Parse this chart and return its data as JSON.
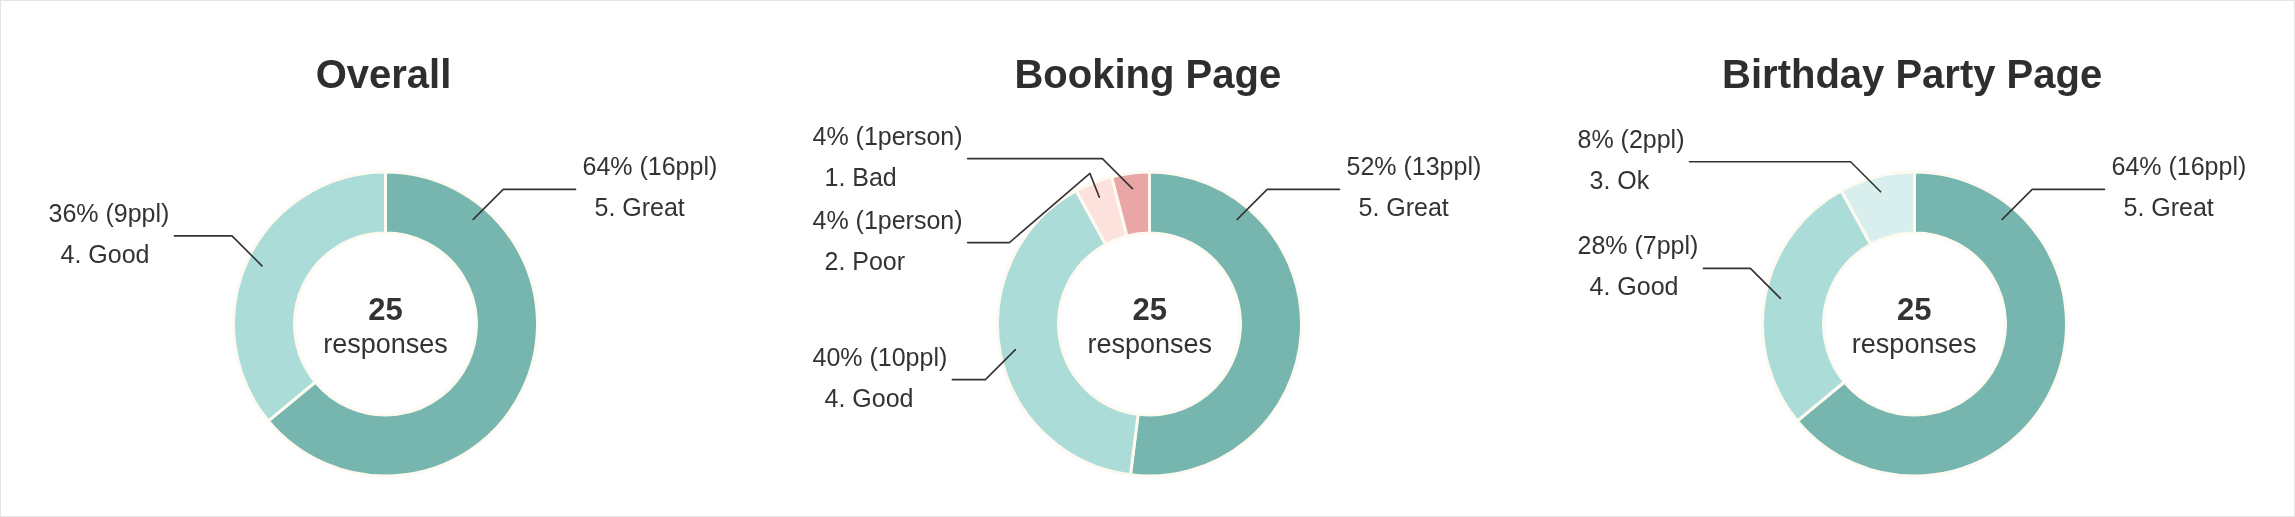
{
  "chart_data": [
    {
      "type": "donut",
      "title": "Overall",
      "categories": [
        "5. Great",
        "4. Good"
      ],
      "values": [
        64,
        36
      ],
      "colors": [
        "#77b5af",
        "#acdcd8"
      ],
      "value_labels": [
        "64% (16ppl)",
        "36% (9ppl)"
      ],
      "annotations": [
        "25",
        "responses"
      ]
    },
    {
      "type": "donut",
      "title": "Booking Page",
      "categories": [
        "5. Great",
        "4. Good",
        "2. Poor",
        "1. Bad"
      ],
      "values": [
        52,
        40,
        4,
        4
      ],
      "colors": [
        "#77b5af",
        "#acdcd8",
        "#fde1dd",
        "#e8a6a4"
      ],
      "value_labels": [
        "52% (13ppl)",
        "40% (10ppl)",
        "4% (1person)",
        "4% (1person)"
      ],
      "annotations": [
        "25",
        "responses"
      ]
    },
    {
      "type": "donut",
      "title": "Birthday Party Page",
      "categories": [
        "5. Great",
        "4. Good",
        "3. Ok"
      ],
      "values": [
        64,
        28,
        8
      ],
      "colors": [
        "#77b5af",
        "#acdcd8",
        "#d9efed"
      ],
      "value_labels": [
        "64% (16ppl)",
        "28% (7ppl)",
        "8% (2ppl)"
      ],
      "annotations": [
        "25",
        "responses"
      ]
    }
  ]
}
